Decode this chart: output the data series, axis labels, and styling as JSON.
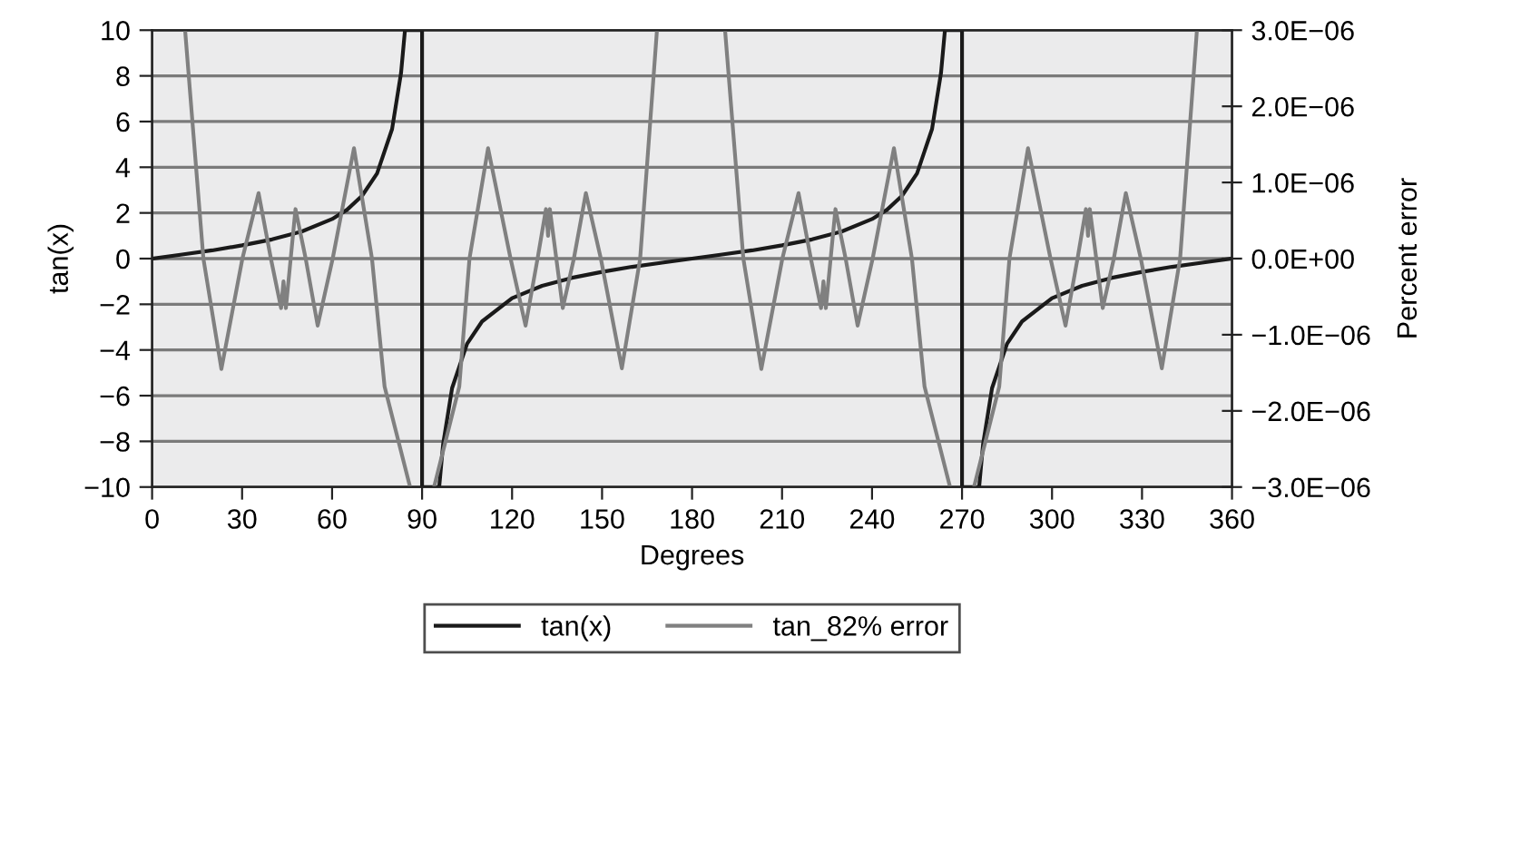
{
  "chart_data": {
    "type": "line",
    "xlabel": "Degrees",
    "ylabel": "tan(x)",
    "y2label": "Percent error",
    "xlim": [
      0,
      360
    ],
    "xticks": [
      0,
      30,
      60,
      90,
      120,
      150,
      180,
      210,
      240,
      270,
      300,
      330,
      360
    ],
    "ylim": [
      -10,
      10
    ],
    "yticks": [
      {
        "value": -10,
        "label": "−10"
      },
      {
        "value": -8,
        "label": "−8"
      },
      {
        "value": -6,
        "label": "−6"
      },
      {
        "value": -4,
        "label": "−4"
      },
      {
        "value": -2,
        "label": "−2"
      },
      0,
      2,
      4,
      6,
      8,
      10
    ],
    "y2lim": [
      -3e-06,
      3e-06
    ],
    "y2ticks": [
      {
        "value": -3e-06,
        "label": "−3.0E−06"
      },
      {
        "value": -2e-06,
        "label": "−2.0E−06"
      },
      {
        "value": -1e-06,
        "label": "−1.0E−06"
      },
      {
        "value": 0,
        "label": "0.0E+00"
      },
      {
        "value": 1e-06,
        "label": "1.0E−06"
      },
      {
        "value": 2e-06,
        "label": "2.0E−06"
      },
      {
        "value": 3e-06,
        "label": "3.0E−06"
      }
    ],
    "grid": "y",
    "legend": "bottom",
    "series": [
      {
        "name": "tan(x)",
        "color": "#1a1a1a",
        "axis": "y",
        "x": [
          0,
          10,
          20,
          30,
          40,
          50,
          60,
          65,
          70,
          75,
          80,
          83,
          84.3,
          90,
          90,
          95.7,
          97,
          100,
          105,
          110,
          120,
          130,
          140,
          150,
          160,
          170,
          180,
          190,
          200,
          210,
          220,
          230,
          240,
          245,
          250,
          255,
          260,
          263,
          264.3,
          270,
          270,
          275.7,
          277,
          280,
          285,
          290,
          300,
          310,
          320,
          330,
          340,
          350,
          360
        ],
        "values": [
          0,
          0.18,
          0.36,
          0.58,
          0.84,
          1.19,
          1.73,
          2.14,
          2.75,
          3.73,
          5.67,
          8.14,
          10,
          10,
          -10,
          -10,
          -8.14,
          -5.67,
          -3.73,
          -2.75,
          -1.73,
          -1.19,
          -0.84,
          -0.58,
          -0.36,
          -0.18,
          0,
          0.18,
          0.36,
          0.58,
          0.84,
          1.19,
          1.73,
          2.14,
          2.75,
          3.73,
          5.67,
          8.14,
          10,
          10,
          -10,
          -10,
          -8.14,
          -5.67,
          -3.73,
          -2.75,
          -1.73,
          -1.19,
          -0.84,
          -0.58,
          -0.36,
          -0.18,
          0
        ]
      },
      {
        "name": "tan_82% error",
        "color": "#808080",
        "axis": "y2",
        "x": [
          11.0,
          17.1,
          23.1,
          30.1,
          35.5,
          39.6,
          43.0,
          43.8,
          44.6,
          47.8,
          51.2,
          55.2,
          60.2,
          67.3,
          73.3,
          77.5,
          86,
          90,
          94,
          102.4,
          105.8,
          112.0,
          119.5,
          124.5,
          128.5,
          131.3,
          132.0,
          132.6,
          136.9,
          140.6,
          144.6,
          149.6,
          156.6,
          162.7,
          168.3,
          180,
          191,
          197.1,
          203.1,
          210.1,
          215.5,
          219.6,
          223.0,
          223.8,
          224.6,
          227.8,
          231.2,
          235.2,
          240.2,
          247.3,
          253.3,
          257.5,
          266,
          270,
          274,
          282.4,
          285.8,
          292.0,
          299.5,
          304.5,
          308.5,
          311.3,
          312.0,
          312.6,
          316.9,
          320.6,
          324.6,
          329.6,
          336.6,
          342.7,
          348.3
        ],
        "values": [
          3e-06,
          0,
          -1.45e-06,
          0,
          8.6e-07,
          0,
          -6.5e-07,
          -3e-07,
          -6.5e-07,
          6.5e-07,
          0,
          -8.8e-07,
          0,
          1.45e-06,
          0,
          -1.68e-06,
          -3e-06,
          null,
          -3e-06,
          -1.68e-06,
          0,
          1.45e-06,
          0,
          -8.8e-07,
          0,
          6.5e-07,
          3e-07,
          6.5e-07,
          -6.5e-07,
          0,
          8.6e-07,
          0,
          -1.44e-06,
          0,
          3e-06,
          null,
          3e-06,
          0,
          -1.45e-06,
          0,
          8.6e-07,
          0,
          -6.5e-07,
          -3e-07,
          -6.5e-07,
          6.5e-07,
          0,
          -8.8e-07,
          0,
          1.45e-06,
          0,
          -1.68e-06,
          -3e-06,
          null,
          -3e-06,
          -1.68e-06,
          0,
          1.45e-06,
          0,
          -8.8e-07,
          0,
          6.5e-07,
          3e-07,
          6.5e-07,
          -6.5e-07,
          0,
          8.6e-07,
          0,
          -1.44e-06,
          0,
          3e-06
        ]
      }
    ]
  }
}
